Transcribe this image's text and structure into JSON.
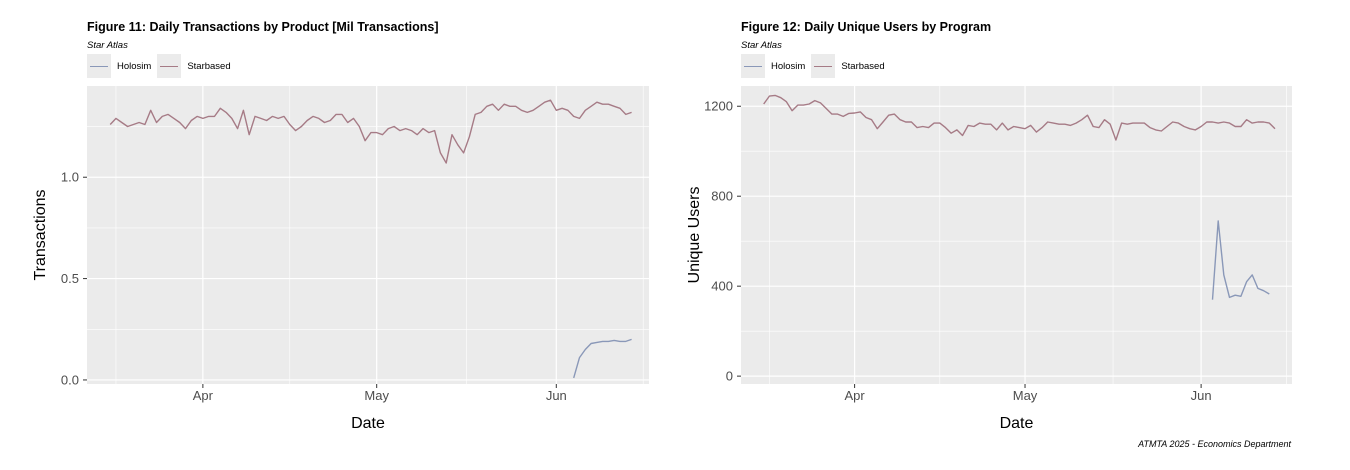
{
  "colors": {
    "holosim": "#8a98b8",
    "starbased": "#a67b86",
    "panel_bg": "#ebebeb",
    "grid": "#ffffff"
  },
  "caption": "ATMTA 2025 - Economics Department",
  "chart_data": [
    {
      "type": "line",
      "title": "Figure 11: Daily Transactions by Product [Mil Transactions]",
      "subtitle": "Star Atlas",
      "xlabel": "Date",
      "ylabel": "Transactions",
      "xlim": [
        "2025-03-12",
        "2025-06-17"
      ],
      "ylim": [
        -0.02,
        1.45
      ],
      "x_ticks": [
        {
          "date": "2025-04-01",
          "label": "Apr"
        },
        {
          "date": "2025-05-01",
          "label": "May"
        },
        {
          "date": "2025-06-01",
          "label": "Jun"
        }
      ],
      "y_ticks": [
        {
          "value": 0.0,
          "label": "0.0"
        },
        {
          "value": 0.5,
          "label": "0.5"
        },
        {
          "value": 1.0,
          "label": "1.0"
        }
      ],
      "grid": true,
      "legend": "top-left",
      "series": [
        {
          "name": "Holosim",
          "color_key": "holosim",
          "start": "2025-06-04",
          "values": [
            0.01,
            0.11,
            0.15,
            0.18,
            0.185,
            0.19,
            0.19,
            0.195,
            0.19,
            0.19,
            0.2
          ]
        },
        {
          "name": "Starbased",
          "color_key": "starbased",
          "start": "2025-03-16",
          "values": [
            1.26,
            1.29,
            1.27,
            1.25,
            1.26,
            1.27,
            1.26,
            1.33,
            1.27,
            1.3,
            1.31,
            1.29,
            1.27,
            1.24,
            1.28,
            1.3,
            1.29,
            1.3,
            1.3,
            1.34,
            1.32,
            1.29,
            1.24,
            1.33,
            1.21,
            1.3,
            1.29,
            1.28,
            1.3,
            1.29,
            1.3,
            1.26,
            1.23,
            1.25,
            1.28,
            1.3,
            1.29,
            1.27,
            1.28,
            1.31,
            1.31,
            1.27,
            1.29,
            1.25,
            1.18,
            1.22,
            1.22,
            1.21,
            1.24,
            1.25,
            1.23,
            1.24,
            1.23,
            1.21,
            1.24,
            1.22,
            1.23,
            1.12,
            1.07,
            1.21,
            1.16,
            1.12,
            1.2,
            1.31,
            1.32,
            1.35,
            1.36,
            1.33,
            1.36,
            1.35,
            1.35,
            1.33,
            1.32,
            1.33,
            1.35,
            1.37,
            1.38,
            1.33,
            1.34,
            1.33,
            1.3,
            1.29,
            1.33,
            1.35,
            1.37,
            1.36,
            1.36,
            1.35,
            1.34,
            1.31,
            1.32
          ]
        }
      ]
    },
    {
      "type": "line",
      "title": "Figure 12: Daily Unique Users by Program",
      "subtitle": "Star Atlas",
      "xlabel": "Date",
      "ylabel": "Unique Users",
      "xlim": [
        "2025-03-12",
        "2025-06-17"
      ],
      "ylim": [
        -35,
        1290
      ],
      "x_ticks": [
        {
          "date": "2025-04-01",
          "label": "Apr"
        },
        {
          "date": "2025-05-01",
          "label": "May"
        },
        {
          "date": "2025-06-01",
          "label": "Jun"
        }
      ],
      "y_ticks": [
        {
          "value": 0,
          "label": "0"
        },
        {
          "value": 400,
          "label": "400"
        },
        {
          "value": 800,
          "label": "800"
        },
        {
          "value": 1200,
          "label": "1200"
        }
      ],
      "grid": true,
      "legend": "top-left",
      "series": [
        {
          "name": "Holosim",
          "color_key": "holosim",
          "start": "2025-06-03",
          "values": [
            340,
            690,
            450,
            350,
            360,
            355,
            420,
            450,
            390,
            380,
            365
          ]
        },
        {
          "name": "Starbased",
          "color_key": "starbased",
          "start": "2025-03-16",
          "values": [
            1210,
            1245,
            1248,
            1238,
            1220,
            1180,
            1205,
            1205,
            1210,
            1225,
            1215,
            1190,
            1165,
            1165,
            1155,
            1168,
            1170,
            1175,
            1150,
            1140,
            1100,
            1130,
            1160,
            1165,
            1140,
            1130,
            1130,
            1105,
            1110,
            1105,
            1125,
            1125,
            1105,
            1080,
            1095,
            1070,
            1115,
            1110,
            1125,
            1120,
            1120,
            1095,
            1125,
            1095,
            1110,
            1105,
            1100,
            1115,
            1085,
            1105,
            1130,
            1125,
            1120,
            1120,
            1115,
            1125,
            1140,
            1160,
            1110,
            1105,
            1140,
            1120,
            1050,
            1125,
            1120,
            1125,
            1125,
            1125,
            1105,
            1095,
            1090,
            1110,
            1130,
            1125,
            1110,
            1100,
            1095,
            1110,
            1130,
            1130,
            1125,
            1130,
            1125,
            1110,
            1110,
            1140,
            1125,
            1130,
            1130,
            1125,
            1100
          ]
        }
      ]
    }
  ]
}
